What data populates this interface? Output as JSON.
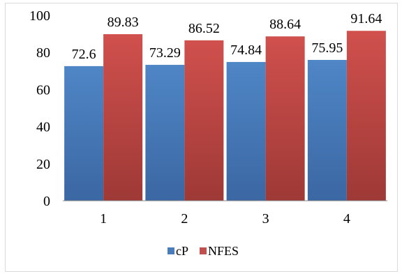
{
  "chart_data": {
    "type": "bar",
    "categories": [
      "1",
      "2",
      "3",
      "4"
    ],
    "series": [
      {
        "name": "cP",
        "values": [
          72.6,
          73.29,
          74.84,
          75.95
        ],
        "labels": [
          "72.6",
          "73.29",
          "74.84",
          "75.95"
        ],
        "color": "#4a7ebb"
      },
      {
        "name": "NFES",
        "values": [
          89.83,
          86.52,
          88.64,
          91.64
        ],
        "labels": [
          "89.83",
          "86.52",
          "88.64",
          "91.64"
        ],
        "color": "#c0504d"
      }
    ],
    "ylim": [
      0,
      100
    ],
    "yticks": [
      0,
      20,
      40,
      60,
      80,
      100
    ],
    "title": "",
    "xlabel": "",
    "ylabel": "",
    "grid": false,
    "legend": "bottom"
  }
}
